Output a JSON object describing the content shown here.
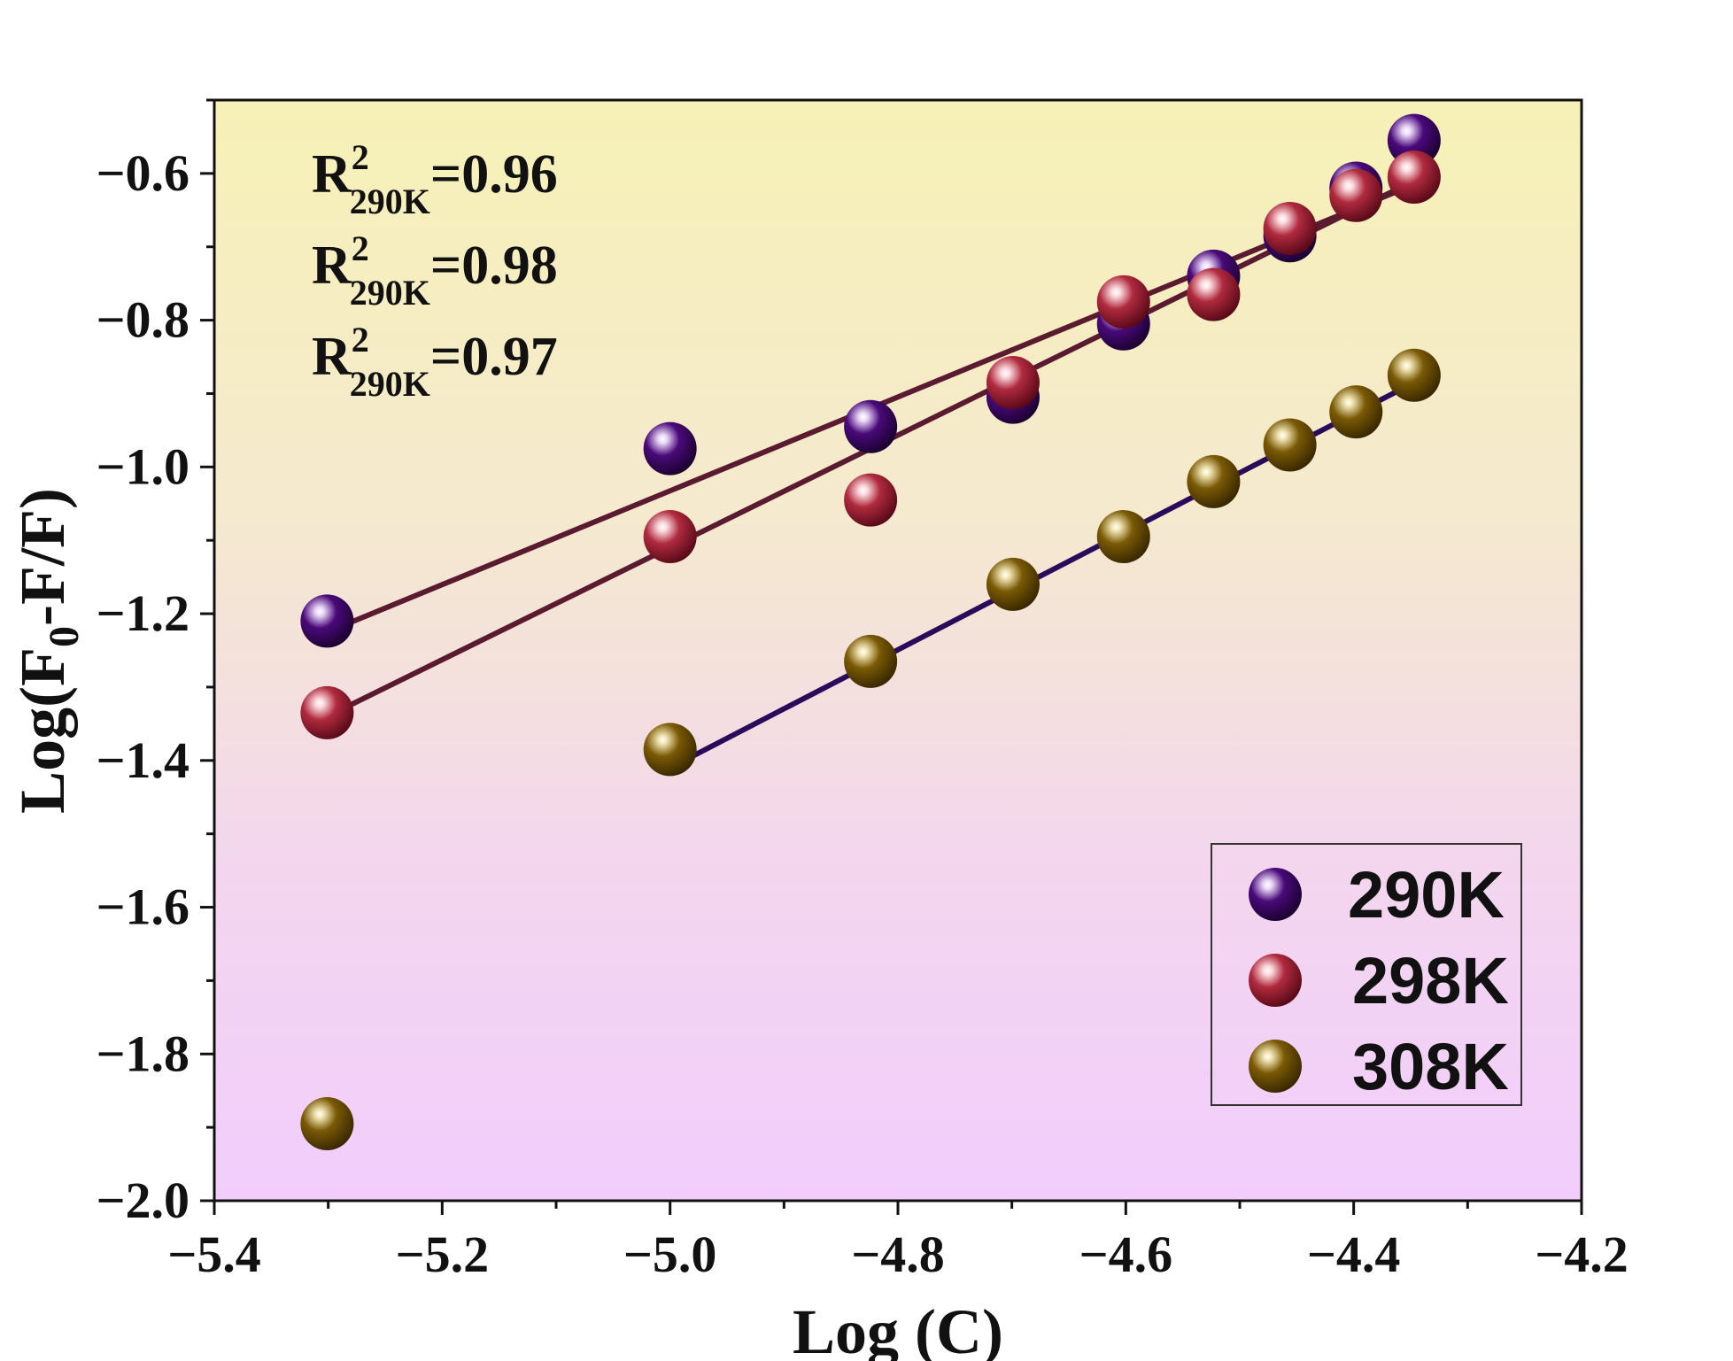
{
  "chart_data": {
    "type": "scatter",
    "xlabel": "Log (C)",
    "ylabel": "Log(F0-F/F)",
    "ylabel_main": "Log(F",
    "ylabel_sub": "0",
    "ylabel_rest": "-F/F)",
    "xlim": [
      -5.4,
      -4.2
    ],
    "ylim": [
      -2.0,
      -0.5
    ],
    "x_ticks": [
      -5.4,
      -5.2,
      -5.0,
      -4.8,
      -4.6,
      -4.4,
      -4.2
    ],
    "x_tick_labels": [
      "−5.4",
      "−5.2",
      "−5.0",
      "−4.8",
      "−4.6",
      "−4.4",
      "−4.2"
    ],
    "y_ticks": [
      -2.0,
      -1.8,
      -1.6,
      -1.4,
      -1.2,
      -1.0,
      -0.8,
      -0.6
    ],
    "y_tick_labels": [
      "−2.0",
      "−1.8",
      "−1.6",
      "−1.4",
      "−1.2",
      "−1.0",
      "−0.8",
      "−0.6"
    ],
    "series": [
      {
        "name": "290K",
        "color": "#4a0a7a",
        "x": [
          -5.301,
          -5.0,
          -4.824,
          -4.699,
          -4.602,
          -4.523,
          -4.456,
          -4.398,
          -4.347
        ],
        "y": [
          -1.21,
          -0.975,
          -0.945,
          -0.905,
          -0.805,
          -0.74,
          -0.685,
          -0.62,
          -0.555
        ],
        "fit": {
          "x": [
            -5.301,
            -4.347
          ],
          "y": [
            -1.225,
            -0.615
          ],
          "color": "#5a1a30"
        }
      },
      {
        "name": "298K",
        "color": "#b02a3e",
        "x": [
          -5.301,
          -5.0,
          -4.824,
          -4.699,
          -4.602,
          -4.523,
          -4.456,
          -4.398,
          -4.347
        ],
        "y": [
          -1.335,
          -1.095,
          -1.045,
          -0.885,
          -0.775,
          -0.765,
          -0.675,
          -0.63,
          -0.605
        ],
        "fit": {
          "x": [
            -5.301,
            -4.347
          ],
          "y": [
            -1.34,
            -0.61
          ],
          "color": "#5a1a30"
        }
      },
      {
        "name": "308K",
        "color": "#7a5a05",
        "x": [
          -5.301,
          -5.0,
          -4.824,
          -4.699,
          -4.602,
          -4.523,
          -4.456,
          -4.398,
          -4.347
        ],
        "y": [
          -1.895,
          -1.385,
          -1.265,
          -1.16,
          -1.095,
          -1.02,
          -0.97,
          -0.925,
          -0.875
        ],
        "fit": {
          "x": [
            -5.0,
            -4.347
          ],
          "y": [
            -1.41,
            -0.885
          ],
          "color": "#2a0a5a"
        }
      }
    ],
    "annotations": [
      {
        "main": "R",
        "sup": "2",
        "sub": "290K",
        "value": "=0.96"
      },
      {
        "main": "R",
        "sup": "2",
        "sub": "290K",
        "value": "=0.98"
      },
      {
        "main": "R",
        "sup": "2",
        "sub": "290K",
        "value": "=0.97"
      }
    ],
    "legend": {
      "placement": "bottom-right",
      "entries": [
        "290K",
        "298K",
        "308K"
      ]
    }
  }
}
